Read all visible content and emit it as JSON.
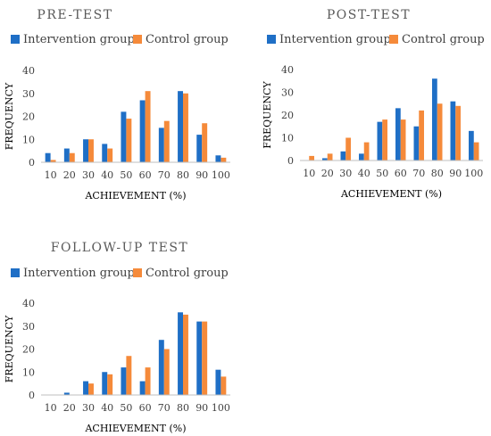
{
  "colors": {
    "intervention": "#1f6fc6",
    "control": "#f58a3a",
    "axis": "#bfbfbf"
  },
  "chart_data": [
    {
      "type": "bar",
      "title": "PRE-TEST",
      "xlabel": "ACHIEVEMENT (%)",
      "ylabel": "FREQUENCY",
      "ylim": [
        0,
        40
      ],
      "yticks": [
        0,
        10,
        20,
        30,
        40
      ],
      "grid": false,
      "legend_position": "top",
      "categories": [
        "10",
        "20",
        "30",
        "40",
        "50",
        "60",
        "70",
        "80",
        "90",
        "100"
      ],
      "series": [
        {
          "name": "Intervention group",
          "values": [
            4,
            6,
            10,
            8,
            22,
            27,
            15,
            31,
            12,
            3
          ]
        },
        {
          "name": "Control group",
          "values": [
            1,
            4,
            10,
            6,
            19,
            31,
            18,
            30,
            17,
            2
          ]
        }
      ]
    },
    {
      "type": "bar",
      "title": "POST-TEST",
      "xlabel": "ACHIEVEMENT (%)",
      "ylabel": "FREQUENCY",
      "ylim": [
        0,
        40
      ],
      "yticks": [
        0,
        10,
        20,
        30,
        40
      ],
      "grid": false,
      "legend_position": "top",
      "categories": [
        "10",
        "20",
        "30",
        "40",
        "50",
        "60",
        "70",
        "80",
        "90",
        "100"
      ],
      "series": [
        {
          "name": "Intervention group",
          "values": [
            0,
            1,
            4,
            3,
            17,
            23,
            15,
            36,
            26,
            13
          ]
        },
        {
          "name": "Control group",
          "values": [
            2,
            3,
            10,
            8,
            18,
            18,
            22,
            25,
            24,
            8
          ]
        }
      ]
    },
    {
      "type": "bar",
      "title": "FOLLOW-UP TEST",
      "xlabel": "ACHIEVEMENT (%)",
      "ylabel": "FREQUENCY",
      "ylim": [
        0,
        40
      ],
      "yticks": [
        0,
        10,
        20,
        30,
        40
      ],
      "grid": false,
      "legend_position": "top",
      "categories": [
        "10",
        "20",
        "30",
        "40",
        "50",
        "60",
        "70",
        "80",
        "90",
        "100"
      ],
      "series": [
        {
          "name": "Intervention group",
          "values": [
            0,
            1,
            6,
            10,
            12,
            6,
            24,
            36,
            32,
            11
          ]
        },
        {
          "name": "Control group",
          "values": [
            0,
            0,
            5,
            9,
            17,
            12,
            20,
            35,
            32,
            8
          ]
        }
      ]
    }
  ]
}
